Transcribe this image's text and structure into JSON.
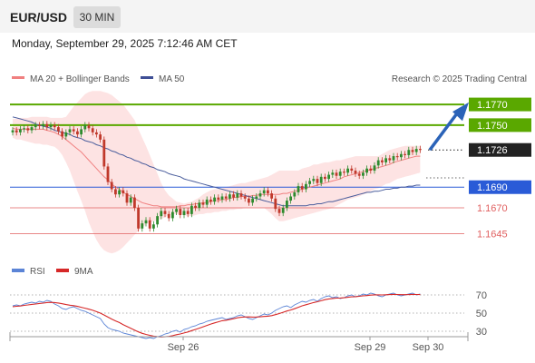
{
  "header": {
    "symbol": "EUR/USD",
    "timeframe": "30 MIN",
    "datetime": "Monday, September 29, 2025 7:12:46 AM CET"
  },
  "legend": {
    "ma20_bb": "MA 20 + Bollinger Bands",
    "ma50": "MA 50",
    "copyright": "Research © 2025 Trading Central",
    "rsi": "RSI",
    "ma9": "9MA"
  },
  "colors": {
    "up": "#2e8b2e",
    "down": "#c0392b",
    "bb_fill": "#fde0e0",
    "ma20": "#f08080",
    "ma50": "#4a5d9c",
    "resistance": "#5aa800",
    "support": "#2a5bd7",
    "support2": "#e06060",
    "current": "#222222",
    "rsi": "#5b84d6",
    "rsi_ma": "#d62828",
    "arrow": "#2b63b8"
  },
  "chart_data": [
    {
      "type": "candlestick",
      "title": "EUR/USD 30 MIN",
      "ylim": [
        1.162,
        1.1785
      ],
      "x_ticks": [
        "Sep 26",
        "Sep 29",
        "Sep 30"
      ],
      "levels": [
        {
          "label": "1.1770",
          "value": 1.177,
          "kind": "resistance"
        },
        {
          "label": "1.1750",
          "value": 1.175,
          "kind": "resistance"
        },
        {
          "label": "1.1726",
          "value": 1.1726,
          "kind": "current"
        },
        {
          "label": "1.1690",
          "value": 1.169,
          "kind": "support"
        },
        {
          "label": "1.1670",
          "value": 1.167,
          "kind": "support"
        },
        {
          "label": "1.1645",
          "value": 1.1645,
          "kind": "support"
        }
      ],
      "closes": [
        1.1745,
        1.1743,
        1.1746,
        1.1747,
        1.1745,
        1.1748,
        1.175,
        1.1749,
        1.1751,
        1.1748,
        1.175,
        1.1748,
        1.1744,
        1.1739,
        1.1743,
        1.1746,
        1.1744,
        1.1741,
        1.1746,
        1.175,
        1.1747,
        1.1743,
        1.1741,
        1.1736,
        1.171,
        1.1695,
        1.1688,
        1.1683,
        1.1687,
        1.1684,
        1.1675,
        1.168,
        1.167,
        1.165,
        1.1655,
        1.1658,
        1.165,
        1.1654,
        1.1662,
        1.1667,
        1.1664,
        1.166,
        1.1666,
        1.1669,
        1.1663,
        1.1667,
        1.1664,
        1.1672,
        1.167,
        1.1675,
        1.1673,
        1.1678,
        1.1676,
        1.168,
        1.1678,
        1.1681,
        1.1679,
        1.1683,
        1.168,
        1.1684,
        1.1681,
        1.1679,
        1.1675,
        1.1679,
        1.1681,
        1.1684,
        1.1687,
        1.1684,
        1.1679,
        1.1669,
        1.1665,
        1.167,
        1.1677,
        1.1681,
        1.1685,
        1.1691,
        1.1688,
        1.1693,
        1.1696,
        1.1698,
        1.1694,
        1.17,
        1.1698,
        1.1702,
        1.1704,
        1.1701,
        1.1705,
        1.1704,
        1.1708,
        1.1706,
        1.1703,
        1.1701,
        1.1704,
        1.1708,
        1.1706,
        1.1711,
        1.1716,
        1.1714,
        1.1718,
        1.1716,
        1.172,
        1.1719,
        1.1722,
        1.1721,
        1.1726,
        1.1724,
        1.1727,
        1.1726
      ],
      "bb_upper": [
        1.1756,
        1.1756,
        1.1757,
        1.1757,
        1.1757,
        1.1758,
        1.1758,
        1.1758,
        1.1758,
        1.1758,
        1.1757,
        1.1757,
        1.1757,
        1.1757,
        1.1758,
        1.1763,
        1.1768,
        1.1772,
        1.1776,
        1.178,
        1.1782,
        1.1783,
        1.1783,
        1.1783,
        1.1782,
        1.1781,
        1.1779,
        1.1776,
        1.1773,
        1.177,
        1.1765,
        1.176,
        1.1755,
        1.1746,
        1.1738,
        1.173,
        1.1721,
        1.1712,
        1.1703,
        1.1694,
        1.1687,
        1.1682,
        1.1679,
        1.1676,
        1.1675,
        1.1674,
        1.1675,
        1.1676,
        1.1678,
        1.168,
        1.1683,
        1.1685,
        1.1687,
        1.1688,
        1.1688,
        1.1689,
        1.169,
        1.1691,
        1.1692,
        1.1693,
        1.1694,
        1.1694,
        1.1695,
        1.1696,
        1.1697,
        1.1698,
        1.1699,
        1.17,
        1.1702,
        1.1704,
        1.1706,
        1.1706,
        1.1706,
        1.1706,
        1.1706,
        1.1706,
        1.1708,
        1.1709,
        1.171,
        1.1712,
        1.1712,
        1.1713,
        1.1714,
        1.1714,
        1.1715,
        1.1716,
        1.1716,
        1.1717,
        1.1718,
        1.1719,
        1.172,
        1.172,
        1.172,
        1.172,
        1.172,
        1.172,
        1.172,
        1.1722,
        1.1724,
        1.1726,
        1.1727,
        1.1728,
        1.1729,
        1.173,
        1.173,
        1.173,
        1.173,
        1.173
      ],
      "bb_lower": [
        1.1738,
        1.1736,
        1.1736,
        1.1735,
        1.1734,
        1.1733,
        1.1732,
        1.1732,
        1.1731,
        1.1731,
        1.173,
        1.1729,
        1.1726,
        1.1721,
        1.1714,
        1.1706,
        1.1696,
        1.1686,
        1.1677,
        1.1667,
        1.1656,
        1.1647,
        1.1639,
        1.1633,
        1.1629,
        1.1627,
        1.1626,
        1.1627,
        1.1629,
        1.1632,
        1.1636,
        1.164,
        1.1644,
        1.1648,
        1.1651,
        1.1654,
        1.1656,
        1.1657,
        1.1658,
        1.1659,
        1.1661,
        1.1663,
        1.1664,
        1.1664,
        1.1664,
        1.1663,
        1.1662,
        1.1662,
        1.1663,
        1.1664,
        1.1664,
        1.1665,
        1.1665,
        1.1666,
        1.1666,
        1.1667,
        1.1667,
        1.1668,
        1.1668,
        1.1669,
        1.1669,
        1.167,
        1.167,
        1.167,
        1.167,
        1.167,
        1.167,
        1.1667,
        1.1664,
        1.166,
        1.1657,
        1.1657,
        1.1658,
        1.1659,
        1.166,
        1.1661,
        1.1662,
        1.1663,
        1.1664,
        1.1665,
        1.1666,
        1.1667,
        1.1668,
        1.1669,
        1.167,
        1.1672,
        1.1674,
        1.1676,
        1.1678,
        1.1679,
        1.168,
        1.1681,
        1.1683,
        1.1684,
        1.1686,
        1.1688,
        1.1689,
        1.1691,
        1.1693,
        1.1694,
        1.1696,
        1.1698,
        1.1699,
        1.17,
        1.1701,
        1.1702,
        1.1703,
        1.1704
      ],
      "ma20": [
        1.1747,
        1.1746,
        1.1746,
        1.1746,
        1.1746,
        1.1746,
        1.1746,
        1.1746,
        1.1746,
        1.1745,
        1.1744,
        1.1743,
        1.1741,
        1.1739,
        1.1736,
        1.1733,
        1.173,
        1.1727,
        1.1724,
        1.172,
        1.1716,
        1.1712,
        1.1708,
        1.1704,
        1.17,
        1.1697,
        1.1693,
        1.169,
        1.1688,
        1.1685,
        1.1683,
        1.1681,
        1.1679,
        1.1677,
        1.1675,
        1.1674,
        1.1673,
        1.1672,
        1.1672,
        1.1671,
        1.1671,
        1.1671,
        1.1671,
        1.1671,
        1.1672,
        1.1672,
        1.1673,
        1.1673,
        1.1674,
        1.1674,
        1.1675,
        1.1675,
        1.1676,
        1.1677,
        1.1677,
        1.1678,
        1.1678,
        1.1679,
        1.168,
        1.168,
        1.1681,
        1.1681,
        1.1681,
        1.1682,
        1.1682,
        1.1683,
        1.1683,
        1.1683,
        1.1683,
        1.1683,
        1.1683,
        1.1684,
        1.1684,
        1.1685,
        1.1686,
        1.1687,
        1.1688,
        1.1689,
        1.169,
        1.1691,
        1.1692,
        1.1693,
        1.1694,
        1.1695,
        1.1696,
        1.1697,
        1.1698,
        1.17,
        1.1701,
        1.1702,
        1.1703,
        1.1704,
        1.1705,
        1.1706,
        1.1707,
        1.1708,
        1.1709,
        1.171,
        1.1711,
        1.1712,
        1.1714,
        1.1715,
        1.1716,
        1.1717,
        1.1718,
        1.1719,
        1.172,
        1.172
      ],
      "ma50": [
        1.1758,
        1.1757,
        1.1756,
        1.1755,
        1.1754,
        1.1753,
        1.1751,
        1.175,
        1.1749,
        1.1748,
        1.1747,
        1.1745,
        1.1744,
        1.1743,
        1.1742,
        1.1741,
        1.1739,
        1.1738,
        1.1737,
        1.1735,
        1.1734,
        1.1733,
        1.1731,
        1.173,
        1.1728,
        1.1727,
        1.1725,
        1.1724,
        1.1722,
        1.1721,
        1.1719,
        1.1718,
        1.1716,
        1.1715,
        1.1713,
        1.1712,
        1.171,
        1.1709,
        1.1707,
        1.1706,
        1.1705,
        1.1703,
        1.1702,
        1.1701,
        1.17,
        1.1698,
        1.1697,
        1.1696,
        1.1695,
        1.1694,
        1.1693,
        1.1692,
        1.1691,
        1.169,
        1.1689,
        1.1688,
        1.1687,
        1.1686,
        1.1685,
        1.1684,
        1.1683,
        1.1682,
        1.1681,
        1.168,
        1.1679,
        1.1678,
        1.1677,
        1.1676,
        1.1675,
        1.1674,
        1.1673,
        1.1672,
        1.1672,
        1.1672,
        1.1672,
        1.1672,
        1.1672,
        1.1672,
        1.1673,
        1.1673,
        1.1674,
        1.1674,
        1.1675,
        1.1676,
        1.1676,
        1.1677,
        1.1678,
        1.1679,
        1.168,
        1.1681,
        1.1682,
        1.1683,
        1.1684,
        1.1685,
        1.1685,
        1.1686,
        1.1686,
        1.1687,
        1.1688,
        1.1688,
        1.1689,
        1.1689,
        1.169,
        1.169,
        1.1691,
        1.1691,
        1.1692,
        1.1692
      ]
    },
    {
      "type": "line",
      "title": "RSI",
      "ylim": [
        15,
        85
      ],
      "y_ticks": [
        30,
        50,
        70
      ],
      "series": [
        {
          "name": "RSI",
          "values": [
            58,
            59,
            58,
            60,
            61,
            62,
            61,
            63,
            62,
            64,
            63,
            60,
            58,
            55,
            54,
            56,
            57,
            55,
            53,
            52,
            50,
            48,
            46,
            44,
            38,
            34,
            32,
            31,
            30,
            28,
            27,
            26,
            25,
            24,
            23,
            22,
            23,
            22,
            24,
            25,
            27,
            28,
            30,
            31,
            29,
            32,
            33,
            35,
            36,
            38,
            39,
            41,
            42,
            43,
            44,
            45,
            43,
            44,
            45,
            47,
            48,
            46,
            44,
            43,
            45,
            47,
            49,
            48,
            50,
            53,
            55,
            57,
            58,
            56,
            59,
            61,
            63,
            62,
            64,
            65,
            63,
            66,
            68,
            69,
            67,
            68,
            66,
            67,
            69,
            70,
            68,
            69,
            71,
            70,
            72,
            71,
            69,
            68,
            70,
            71,
            72,
            70,
            69,
            70,
            71,
            72,
            70,
            71
          ]
        },
        {
          "name": "9MA",
          "values": [
            57,
            57.5,
            57.8,
            58.5,
            59,
            59.6,
            60,
            60.6,
            61,
            61.6,
            61.8,
            61.6,
            61.1,
            60.3,
            59.4,
            58.7,
            58.2,
            57.4,
            56.4,
            55.4,
            54.3,
            53.1,
            51.6,
            50,
            47.9,
            45.6,
            43.4,
            41.4,
            39.6,
            37.3,
            35.3,
            33.2,
            31.3,
            29.3,
            27.7,
            26.5,
            25.5,
            24.6,
            24.1,
            23.7,
            23.9,
            24.3,
            25.1,
            26.2,
            27,
            28.1,
            29.2,
            30.7,
            32,
            33.4,
            34.9,
            36.4,
            37.9,
            39.2,
            40.4,
            41.6,
            42.1,
            42.9,
            43.8,
            44.8,
            45.4,
            45.7,
            45.8,
            45.6,
            45.7,
            45.9,
            46.3,
            46.6,
            47.2,
            48.3,
            49.5,
            50.9,
            52.3,
            53.4,
            54.8,
            56.4,
            58,
            59.2,
            60.4,
            61.6,
            62.5,
            63.6,
            64.8,
            65.6,
            66.1,
            66.5,
            66.6,
            66.9,
            67.4,
            67.9,
            68.1,
            68.5,
            69,
            69.3,
            69.8,
            70.1,
            70.1,
            70,
            70.2,
            70.4,
            70.6,
            70.5,
            70.3,
            70.3,
            70.4,
            70.6,
            70.5,
            70.4
          ]
        }
      ]
    }
  ]
}
